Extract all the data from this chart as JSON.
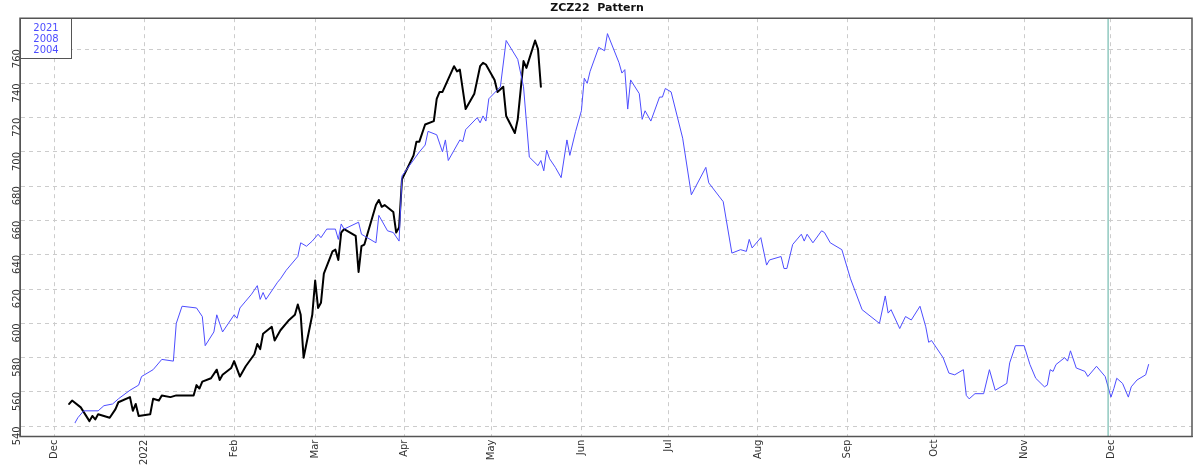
{
  "chart_data": {
    "type": "line",
    "title": "ZCZ22  Pattern",
    "xlim": [
      "2021-11-19",
      "2022-12-29"
    ],
    "xticks": [
      {
        "value": "2021-12-01",
        "label": "Dec"
      },
      {
        "value": "2022-01-01",
        "label": "2022"
      },
      {
        "value": "2022-02-01",
        "label": "Feb"
      },
      {
        "value": "2022-03-01",
        "label": "Mar"
      },
      {
        "value": "2022-04-01",
        "label": "Apr"
      },
      {
        "value": "2022-05-01",
        "label": "May"
      },
      {
        "value": "2022-06-01",
        "label": "Jun"
      },
      {
        "value": "2022-07-01",
        "label": "Jul"
      },
      {
        "value": "2022-08-01",
        "label": "Aug"
      },
      {
        "value": "2022-09-01",
        "label": "Sep"
      },
      {
        "value": "2022-10-01",
        "label": "Oct"
      },
      {
        "value": "2022-11-01",
        "label": "Nov"
      },
      {
        "value": "2022-12-01",
        "label": "Dec"
      }
    ],
    "ylim": [
      534,
      778
    ],
    "yticks": [
      540,
      560,
      580,
      600,
      620,
      640,
      660,
      680,
      700,
      720,
      740,
      760
    ],
    "grid": true,
    "legend": "top left",
    "line_style": "solid",
    "marker": "none",
    "ref_lines": [
      {
        "axis": "x",
        "value": "2022-11-30",
        "color": "#5aaea0"
      }
    ],
    "series": [
      {
        "name": "2021 2008 2004",
        "color": "#4d4dff",
        "x": [
          "2021-12-08",
          "2021-12-09",
          "2021-12-11",
          "2021-12-16",
          "2021-12-18",
          "2021-12-21",
          "2021-12-23",
          "2021-12-27",
          "2021-12-30",
          "2021-12-31",
          "2022-01-04",
          "2022-01-07",
          "2022-01-11",
          "2022-01-12",
          "2022-01-14",
          "2022-01-19",
          "2022-01-21",
          "2022-01-22",
          "2022-01-25",
          "2022-01-26",
          "2022-01-28",
          "2022-02-01",
          "2022-02-02",
          "2022-02-03",
          "2022-02-05",
          "2022-02-07",
          "2022-02-09",
          "2022-02-10",
          "2022-02-11",
          "2022-02-12",
          "2022-02-16",
          "2022-02-17",
          "2022-02-19",
          "2022-02-23",
          "2022-02-24",
          "2022-02-26",
          "2022-02-28",
          "2022-03-02",
          "2022-03-03",
          "2022-03-05",
          "2022-03-08",
          "2022-03-09",
          "2022-03-10",
          "2022-03-11",
          "2022-03-16",
          "2022-03-17",
          "2022-03-18",
          "2022-03-22",
          "2022-03-23",
          "2022-03-26",
          "2022-03-28",
          "2022-03-30",
          "2022-03-31",
          "2022-04-06",
          "2022-04-08",
          "2022-04-09",
          "2022-04-12",
          "2022-04-14",
          "2022-04-15",
          "2022-04-16",
          "2022-04-20",
          "2022-04-21",
          "2022-04-22",
          "2022-04-26",
          "2022-04-27",
          "2022-04-28",
          "2022-04-29",
          "2022-04-30",
          "2022-05-04",
          "2022-05-06",
          "2022-05-10",
          "2022-05-12",
          "2022-05-14",
          "2022-05-17",
          "2022-05-18",
          "2022-05-19",
          "2022-05-20",
          "2022-05-21",
          "2022-05-23",
          "2022-05-25",
          "2022-05-27",
          "2022-05-28",
          "2022-05-30",
          "2022-06-01",
          "2022-06-02",
          "2022-06-03",
          "2022-06-04",
          "2022-06-07",
          "2022-06-09",
          "2022-06-10",
          "2022-06-14",
          "2022-06-15",
          "2022-06-16",
          "2022-06-17",
          "2022-06-18",
          "2022-06-21",
          "2022-06-22",
          "2022-06-23",
          "2022-06-25",
          "2022-06-28",
          "2022-06-29",
          "2022-06-30",
          "2022-07-02",
          "2022-07-06",
          "2022-07-09",
          "2022-07-14",
          "2022-07-15",
          "2022-07-20",
          "2022-07-23",
          "2022-07-26",
          "2022-07-28",
          "2022-07-29",
          "2022-07-30",
          "2022-08-02",
          "2022-08-04",
          "2022-08-05",
          "2022-08-09",
          "2022-08-10",
          "2022-08-11",
          "2022-08-13",
          "2022-08-16",
          "2022-08-17",
          "2022-08-18",
          "2022-08-20",
          "2022-08-23",
          "2022-08-24",
          "2022-08-26",
          "2022-08-30",
          "2022-09-02",
          "2022-09-06",
          "2022-09-12",
          "2022-09-14",
          "2022-09-15",
          "2022-09-16",
          "2022-09-19",
          "2022-09-21",
          "2022-09-23",
          "2022-09-26",
          "2022-09-28",
          "2022-09-29",
          "2022-09-30",
          "2022-10-04",
          "2022-10-06",
          "2022-10-08",
          "2022-10-11",
          "2022-10-12",
          "2022-10-13",
          "2022-10-15",
          "2022-10-18",
          "2022-10-20",
          "2022-10-22",
          "2022-10-26",
          "2022-10-27",
          "2022-10-29",
          "2022-11-01",
          "2022-11-03",
          "2022-11-05",
          "2022-11-08",
          "2022-11-09",
          "2022-11-10",
          "2022-11-11",
          "2022-11-12",
          "2022-11-15",
          "2022-11-16",
          "2022-11-17",
          "2022-11-19",
          "2022-11-22",
          "2022-11-23",
          "2022-11-26",
          "2022-11-29",
          "2022-12-01",
          "2022-12-02",
          "2022-12-03",
          "2022-12-05",
          "2022-12-07",
          "2022-12-08",
          "2022-12-10",
          "2022-12-13",
          "2022-12-14"
        ],
        "values": [
          542,
          545,
          549,
          549,
          552,
          553,
          556,
          561,
          564,
          569,
          573,
          579,
          578,
          600,
          610,
          609,
          604,
          587,
          595,
          605,
          595,
          605,
          603,
          609,
          613,
          617,
          622,
          614,
          618,
          614,
          624,
          626,
          631,
          639,
          647,
          645,
          648,
          652,
          650,
          655,
          655,
          649,
          658,
          655,
          659,
          652,
          651,
          647,
          663,
          654,
          653,
          648,
          686,
          700,
          704,
          712,
          710,
          700,
          707,
          695,
          707,
          706,
          713,
          720,
          717,
          721,
          718,
          731,
          738,
          765,
          754,
          738,
          697,
          692,
          695,
          689,
          701,
          696,
          691,
          685,
          707,
          698,
          712,
          724,
          743,
          740,
          747,
          761,
          759,
          769,
          752,
          746,
          748,
          725,
          742,
          734,
          719,
          724,
          718,
          732,
          732,
          737,
          735,
          708,
          675,
          691,
          682,
          671,
          641,
          643,
          642,
          649,
          644,
          650,
          634,
          637,
          639,
          632,
          632,
          646,
          652,
          648,
          652,
          647,
          654,
          653,
          647,
          643,
          626,
          608,
          600,
          616,
          606,
          608,
          597,
          604,
          602,
          610,
          598,
          589,
          590,
          580,
          571,
          570,
          573,
          558,
          556,
          559,
          559,
          573,
          561,
          565,
          577,
          587,
          587,
          576,
          568,
          563,
          564,
          573,
          572,
          576,
          580,
          578,
          584,
          574,
          572,
          569,
          575,
          569,
          557,
          562,
          568,
          565,
          557,
          563,
          567,
          570,
          576
        ]
      },
      {
        "color": "#000000",
        "x": [
          "2021-12-06",
          "2021-12-07",
          "2021-12-10",
          "2021-12-13",
          "2021-12-14",
          "2021-12-15",
          "2021-12-16",
          "2021-12-20",
          "2021-12-22",
          "2021-12-23",
          "2021-12-27",
          "2021-12-28",
          "2021-12-29",
          "2021-12-30",
          "2022-01-03",
          "2022-01-04",
          "2022-01-06",
          "2022-01-07",
          "2022-01-10",
          "2022-01-12",
          "2022-01-18",
          "2022-01-19",
          "2022-01-20",
          "2022-01-21",
          "2022-01-24",
          "2022-01-26",
          "2022-01-27",
          "2022-01-28",
          "2022-01-31",
          "2022-02-01",
          "2022-02-03",
          "2022-02-05",
          "2022-02-08",
          "2022-02-09",
          "2022-02-10",
          "2022-02-11",
          "2022-02-14",
          "2022-02-15",
          "2022-02-17",
          "2022-02-20",
          "2022-02-22",
          "2022-02-23",
          "2022-02-24",
          "2022-02-25",
          "2022-02-28",
          "2022-03-01",
          "2022-03-02",
          "2022-03-03",
          "2022-03-04",
          "2022-03-07",
          "2022-03-08",
          "2022-03-09",
          "2022-03-10",
          "2022-03-11",
          "2022-03-15",
          "2022-03-16",
          "2022-03-17",
          "2022-03-18",
          "2022-03-22",
          "2022-03-23",
          "2022-03-24",
          "2022-03-25",
          "2022-03-28",
          "2022-03-29",
          "2022-03-30",
          "2022-03-31",
          "2022-04-04",
          "2022-04-05",
          "2022-04-06",
          "2022-04-08",
          "2022-04-11",
          "2022-04-12",
          "2022-04-13",
          "2022-04-14",
          "2022-04-18",
          "2022-04-19",
          "2022-04-20",
          "2022-04-22",
          "2022-04-25",
          "2022-04-27",
          "2022-04-28",
          "2022-04-29",
          "2022-05-02",
          "2022-05-03",
          "2022-05-05",
          "2022-05-06",
          "2022-05-09",
          "2022-05-10",
          "2022-05-12",
          "2022-05-13",
          "2022-05-16",
          "2022-05-17",
          "2022-05-18"
        ],
        "values": [
          553,
          555,
          551,
          543,
          546,
          544,
          547,
          545,
          550,
          554,
          557,
          549,
          553,
          546,
          547,
          556,
          555,
          558,
          557,
          558,
          558,
          564,
          562,
          566,
          568,
          573,
          567,
          570,
          574,
          578,
          569,
          575,
          582,
          588,
          585,
          594,
          598,
          590,
          596,
          602,
          605,
          611,
          605,
          580,
          605,
          625,
          609,
          612,
          629,
          642,
          643,
          637,
          653,
          655,
          651,
          630,
          645,
          646,
          669,
          672,
          668,
          669,
          665,
          653,
          656,
          684,
          698,
          706,
          706,
          716,
          718,
          731,
          735,
          735,
          750,
          747,
          748,
          725,
          734,
          750,
          752,
          751,
          742,
          735,
          738,
          721,
          711,
          719,
          753,
          749,
          765,
          760,
          738
        ]
      }
    ]
  }
}
